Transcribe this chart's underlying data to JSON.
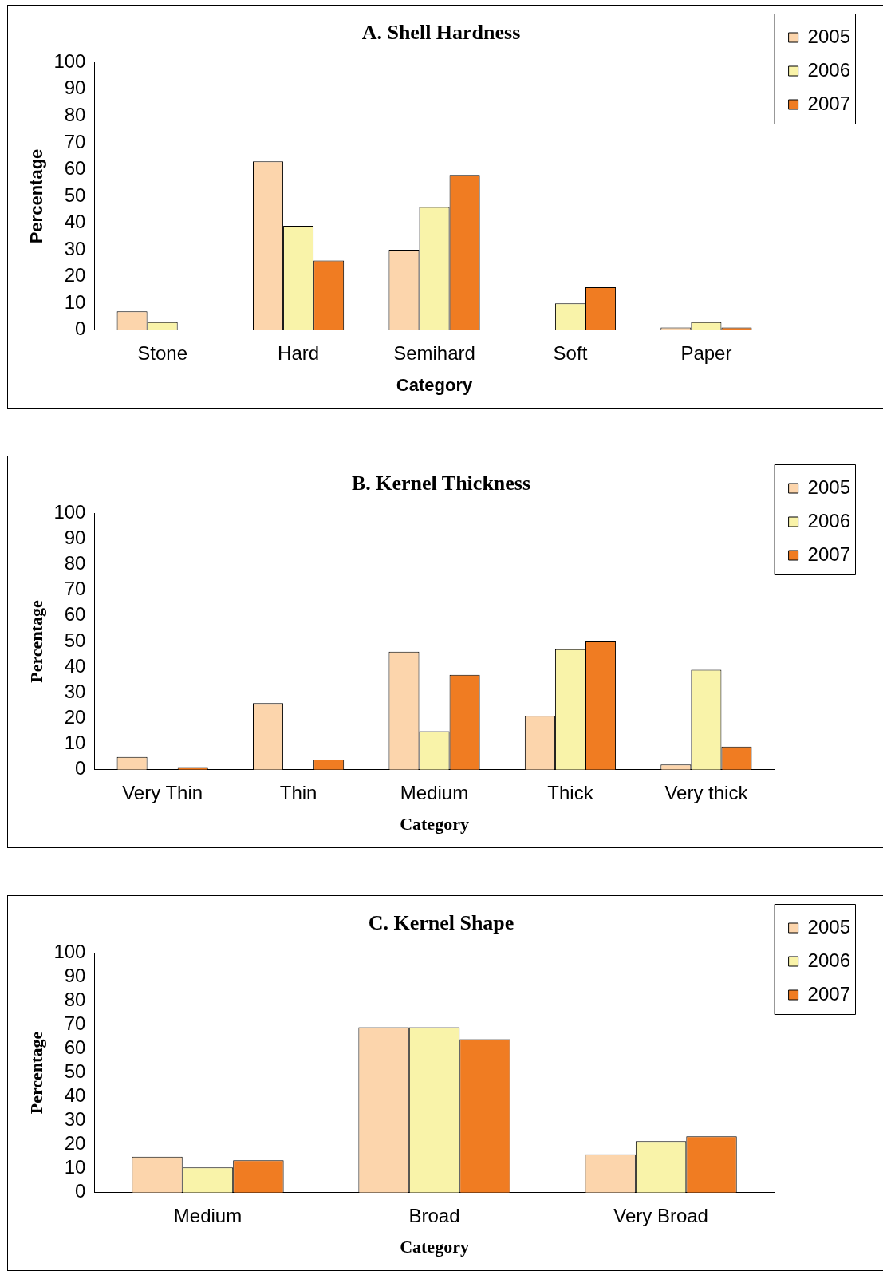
{
  "chart_data": [
    {
      "type": "bar",
      "title": "A. Shell Hardness",
      "xlabel": "Category",
      "ylabel": "Percentage",
      "categories": [
        "Stone",
        "Hard",
        "Semihard",
        "Soft",
        "Paper"
      ],
      "series": [
        {
          "name": "2005",
          "color": "#fcd5ac",
          "values": [
            7,
            63,
            30,
            0,
            1
          ]
        },
        {
          "name": "2006",
          "color": "#f9f3a9",
          "values": [
            3,
            39,
            46,
            10,
            3
          ]
        },
        {
          "name": "2007",
          "color": "#f07c22",
          "values": [
            0,
            26,
            58,
            16,
            1
          ]
        }
      ],
      "ylim": [
        0,
        100
      ],
      "yticks": [
        0,
        10,
        20,
        30,
        40,
        50,
        60,
        70,
        80,
        90,
        100
      ],
      "grid": false,
      "legend": "top right"
    },
    {
      "type": "bar",
      "title": "B. Kernel Thickness",
      "xlabel": "Category",
      "ylabel": "Percentage",
      "categories": [
        "Very Thin",
        "Thin",
        "Medium",
        "Thick",
        "Very thick"
      ],
      "series": [
        {
          "name": "2005",
          "color": "#fcd5ac",
          "values": [
            5,
            26,
            46,
            21,
            2
          ]
        },
        {
          "name": "2006",
          "color": "#f9f3a9",
          "values": [
            0,
            0,
            15,
            47,
            39
          ]
        },
        {
          "name": "2007",
          "color": "#f07c22",
          "values": [
            1,
            4,
            37,
            50,
            9
          ]
        }
      ],
      "ylim": [
        0,
        100
      ],
      "yticks": [
        0,
        10,
        20,
        30,
        40,
        50,
        60,
        70,
        80,
        90,
        100
      ],
      "grid": false,
      "legend": "top right"
    },
    {
      "type": "bar",
      "title": "C. Kernel Shape",
      "xlabel": "Category",
      "ylabel": "Percentage",
      "categories": [
        "Medium",
        "Broad",
        "Very Broad"
      ],
      "series": [
        {
          "name": "2005",
          "color": "#fcd5ac",
          "values": [
            15,
            69,
            16
          ]
        },
        {
          "name": "2006",
          "color": "#f9f3a9",
          "values": [
            10.5,
            69,
            21.5
          ]
        },
        {
          "name": "2007",
          "color": "#f07c22",
          "values": [
            13.5,
            64,
            23.5
          ]
        }
      ],
      "ylim": [
        0,
        100
      ],
      "yticks": [
        0,
        10,
        20,
        30,
        40,
        50,
        60,
        70,
        80,
        90,
        100
      ],
      "grid": false,
      "legend": "top right"
    }
  ]
}
